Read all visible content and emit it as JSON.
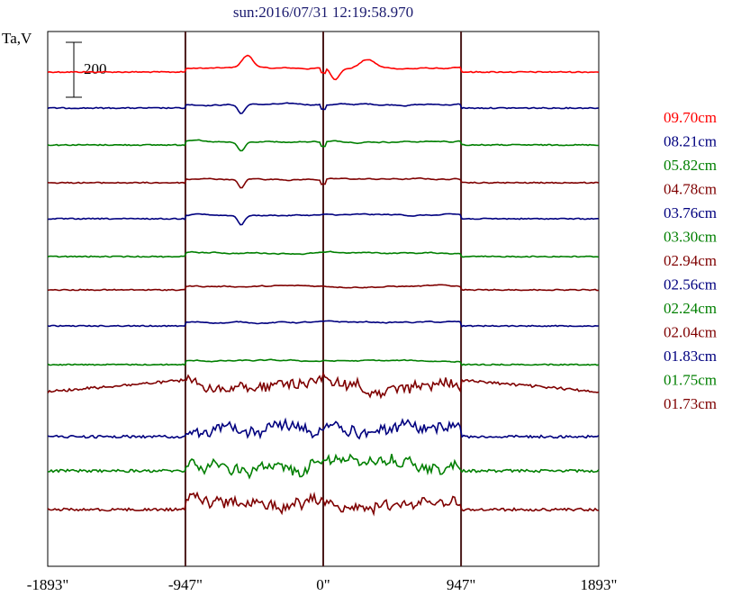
{
  "chart_data": {
    "type": "line",
    "title": "sun:2016/07/31 12:19:58.970",
    "ylabel": "Ta,V",
    "scale_bar_label": "200",
    "xlim": [
      -1893,
      1893
    ],
    "xticks": [
      -1893,
      -947,
      0,
      947,
      1893
    ],
    "xtick_labels": [
      "-1893\"",
      "-947\"",
      "0\"",
      "947\"",
      "1893\""
    ],
    "vlines": [
      -947,
      0,
      947
    ],
    "grid": false,
    "legend_position": "right",
    "series": [
      {
        "name": "09.70cm",
        "color": "#ff0000"
      },
      {
        "name": "08.21cm",
        "color": "#00007f"
      },
      {
        "name": "05.82cm",
        "color": "#007f00"
      },
      {
        "name": "04.78cm",
        "color": "#7f0000"
      },
      {
        "name": "03.76cm",
        "color": "#00007f"
      },
      {
        "name": "03.30cm",
        "color": "#007f00"
      },
      {
        "name": "02.94cm",
        "color": "#7f0000"
      },
      {
        "name": "02.56cm",
        "color": "#00007f"
      },
      {
        "name": "02.24cm",
        "color": "#007f00"
      },
      {
        "name": "02.04cm",
        "color": "#7f0000"
      },
      {
        "name": "01.83cm",
        "color": "#00007f"
      },
      {
        "name": "01.75cm",
        "color": "#007f00"
      },
      {
        "name": "01.73cm",
        "color": "#7f0000"
      }
    ]
  }
}
